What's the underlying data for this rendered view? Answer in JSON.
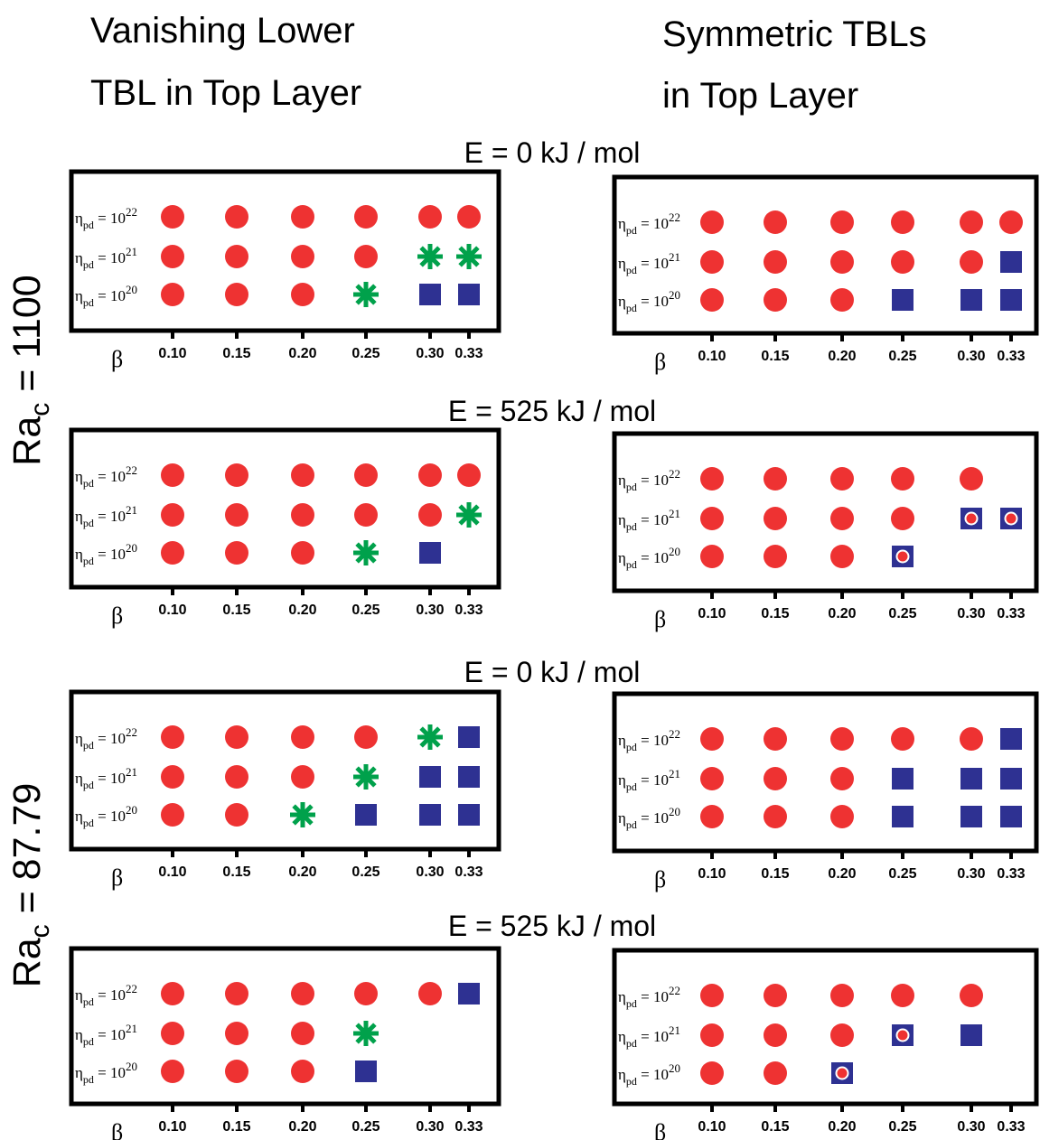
{
  "column_titles": {
    "left_line1": "Vanishing Lower",
    "left_line2": "TBL in Top Layer",
    "right_line1": "Symmetric TBLs",
    "right_line2": "in Top Layer"
  },
  "row_labels": {
    "top": {
      "base": "Ra",
      "sub": "c",
      "rest": " = 1100"
    },
    "bottom": {
      "base": "Ra",
      "sub": "c",
      "rest": " = 87.79"
    }
  },
  "axis": {
    "xlabel": "β",
    "x_ticks": [
      "0.10",
      "0.15",
      "0.20",
      "0.25",
      "0.30",
      "0.33"
    ],
    "y_categories": [
      {
        "base": "η",
        "sub": "pd",
        "eq": " = 10",
        "exp": "22"
      },
      {
        "base": "η",
        "sub": "pd",
        "eq": " = 10",
        "exp": "21"
      },
      {
        "base": "η",
        "sub": "pd",
        "eq": " = 10",
        "exp": "20"
      }
    ]
  },
  "colors": {
    "circle": "#ee3232",
    "square": "#2e3192",
    "asterisk": "#00a14b",
    "frame": "#000000"
  },
  "chart_data": [
    {
      "type": "scatter",
      "title": "E = 0 kJ / mol",
      "xlabel": "β",
      "x": [
        0.1,
        0.15,
        0.2,
        0.25,
        0.3,
        0.33
      ],
      "y_categories": [
        "η_pd = 10^22",
        "η_pd = 10^21",
        "η_pd = 10^20"
      ],
      "rows": [
        [
          "circle",
          "circle",
          "circle",
          "circle",
          "circle",
          "circle"
        ],
        [
          "circle",
          "circle",
          "circle",
          "circle",
          "asterisk",
          "asterisk"
        ],
        [
          "circle",
          "circle",
          "circle",
          "asterisk",
          "square",
          "square"
        ]
      ]
    },
    {
      "type": "scatter",
      "title": "",
      "xlabel": "β",
      "x": [
        0.1,
        0.15,
        0.2,
        0.25,
        0.3,
        0.33
      ],
      "y_categories": [
        "η_pd = 10^22",
        "η_pd = 10^21",
        "η_pd = 10^20"
      ],
      "rows": [
        [
          "circle",
          "circle",
          "circle",
          "circle",
          "circle",
          "circle"
        ],
        [
          "circle",
          "circle",
          "circle",
          "circle",
          "circle",
          "square"
        ],
        [
          "circle",
          "circle",
          "circle",
          "square",
          "square",
          "square"
        ]
      ]
    },
    {
      "type": "scatter",
      "title": "E = 525 kJ / mol",
      "xlabel": "β",
      "x": [
        0.1,
        0.15,
        0.2,
        0.25,
        0.3,
        0.33
      ],
      "y_categories": [
        "η_pd = 10^22",
        "η_pd = 10^21",
        "η_pd = 10^20"
      ],
      "rows": [
        [
          "circle",
          "circle",
          "circle",
          "circle",
          "circle",
          "circle"
        ],
        [
          "circle",
          "circle",
          "circle",
          "circle",
          "circle",
          "asterisk"
        ],
        [
          "circle",
          "circle",
          "circle",
          "asterisk",
          "square",
          null
        ]
      ]
    },
    {
      "type": "scatter",
      "title": "",
      "xlabel": "β",
      "x": [
        0.1,
        0.15,
        0.2,
        0.25,
        0.3,
        0.33
      ],
      "y_categories": [
        "η_pd = 10^22",
        "η_pd = 10^21",
        "η_pd = 10^20"
      ],
      "rows": [
        [
          "circle",
          "circle",
          "circle",
          "circle",
          "circle",
          null
        ],
        [
          "circle",
          "circle",
          "circle",
          "circle",
          "square-dot",
          "square-dot"
        ],
        [
          "circle",
          "circle",
          "circle",
          "square-dot",
          null,
          null
        ]
      ]
    },
    {
      "type": "scatter",
      "title": "E = 0 kJ / mol",
      "xlabel": "β",
      "x": [
        0.1,
        0.15,
        0.2,
        0.25,
        0.3,
        0.33
      ],
      "y_categories": [
        "η_pd = 10^22",
        "η_pd = 10^21",
        "η_pd = 10^20"
      ],
      "rows": [
        [
          "circle",
          "circle",
          "circle",
          "circle",
          "asterisk",
          "square"
        ],
        [
          "circle",
          "circle",
          "circle",
          "asterisk",
          "square",
          "square"
        ],
        [
          "circle",
          "circle",
          "asterisk",
          "square",
          "square",
          "square"
        ]
      ]
    },
    {
      "type": "scatter",
      "title": "",
      "xlabel": "β",
      "x": [
        0.1,
        0.15,
        0.2,
        0.25,
        0.3,
        0.33
      ],
      "y_categories": [
        "η_pd = 10^22",
        "η_pd = 10^21",
        "η_pd = 10^20"
      ],
      "rows": [
        [
          "circle",
          "circle",
          "circle",
          "circle",
          "circle",
          "square"
        ],
        [
          "circle",
          "circle",
          "circle",
          "square",
          "square",
          "square"
        ],
        [
          "circle",
          "circle",
          "circle",
          "square",
          "square",
          "square"
        ]
      ]
    },
    {
      "type": "scatter",
      "title": "E = 525 kJ / mol",
      "xlabel": "β",
      "x": [
        0.1,
        0.15,
        0.2,
        0.25,
        0.3,
        0.33
      ],
      "y_categories": [
        "η_pd = 10^22",
        "η_pd = 10^21",
        "η_pd = 10^20"
      ],
      "rows": [
        [
          "circle",
          "circle",
          "circle",
          "circle",
          "circle",
          "square"
        ],
        [
          "circle",
          "circle",
          "circle",
          "asterisk",
          null,
          null
        ],
        [
          "circle",
          "circle",
          "circle",
          "square",
          null,
          null
        ]
      ]
    },
    {
      "type": "scatter",
      "title": "",
      "xlabel": "β",
      "x": [
        0.1,
        0.15,
        0.2,
        0.25,
        0.3,
        0.33
      ],
      "y_categories": [
        "η_pd = 10^22",
        "η_pd = 10^21",
        "η_pd = 10^20"
      ],
      "rows": [
        [
          "circle",
          "circle",
          "circle",
          "circle",
          "circle",
          null
        ],
        [
          "circle",
          "circle",
          "circle",
          "square-dot",
          "square",
          null
        ],
        [
          "circle",
          "circle",
          "square-dot",
          null,
          null,
          null
        ]
      ]
    }
  ]
}
